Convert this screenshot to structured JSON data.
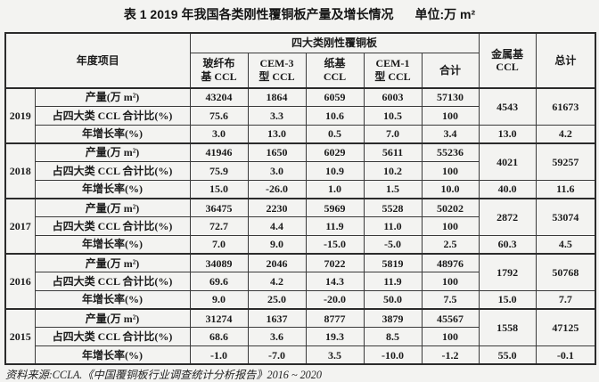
{
  "title": {
    "main": "表 1  2019 年我国各类刚性覆铜板产量及增长情况",
    "unit": "单位:万 m²"
  },
  "table": {
    "header": {
      "year_item": "年度项目",
      "four_types_group": "四大类刚性覆铜板",
      "four_type_columns": [
        "玻纤布\n基 CCL",
        "CEM-3\n型 CCL",
        "纸基\nCCL",
        "CEM-1\n型 CCL",
        "合计"
      ],
      "metal_base": "金属基\nCCL",
      "grand_total": "总计"
    },
    "row_labels": [
      "产量(万 m²)",
      "占四大类 CCL 合计比(%)",
      "年增长率(%)"
    ],
    "years": [
      {
        "year": "2019",
        "production": [
          "43204",
          "1864",
          "6059",
          "6003",
          "57130"
        ],
        "share": [
          "75.6",
          "3.3",
          "10.6",
          "10.5",
          "100"
        ],
        "growth": [
          "3.0",
          "13.0",
          "0.5",
          "7.0",
          "3.4"
        ],
        "metal_value": "4543",
        "metal_growth": "13.0",
        "total_value": "61673",
        "total_growth": "4.2"
      },
      {
        "year": "2018",
        "production": [
          "41946",
          "1650",
          "6029",
          "5611",
          "55236"
        ],
        "share": [
          "75.9",
          "3.0",
          "10.9",
          "10.2",
          "100"
        ],
        "growth": [
          "15.0",
          "-26.0",
          "1.0",
          "1.5",
          "10.0"
        ],
        "metal_value": "4021",
        "metal_growth": "40.0",
        "total_value": "59257",
        "total_growth": "11.6"
      },
      {
        "year": "2017",
        "production": [
          "36475",
          "2230",
          "5969",
          "5528",
          "50202"
        ],
        "share": [
          "72.7",
          "4.4",
          "11.9",
          "11.0",
          "100"
        ],
        "growth": [
          "7.0",
          "9.0",
          "-15.0",
          "-5.0",
          "2.5"
        ],
        "metal_value": "2872",
        "metal_growth": "60.3",
        "total_value": "53074",
        "total_growth": "4.5"
      },
      {
        "year": "2016",
        "production": [
          "34089",
          "2046",
          "7022",
          "5819",
          "48976"
        ],
        "share": [
          "69.6",
          "4.2",
          "14.3",
          "11.9",
          "100"
        ],
        "growth": [
          "9.0",
          "25.0",
          "-20.0",
          "50.0",
          "7.5"
        ],
        "metal_value": "1792",
        "metal_growth": "15.0",
        "total_value": "50768",
        "total_growth": "7.7"
      },
      {
        "year": "2015",
        "production": [
          "31274",
          "1637",
          "8777",
          "3879",
          "45567"
        ],
        "share": [
          "68.6",
          "3.6",
          "19.3",
          "8.5",
          "100"
        ],
        "growth": [
          "-1.0",
          "-7.0",
          "3.5",
          "-10.0",
          "-1.2"
        ],
        "metal_value": "1558",
        "metal_growth": "55.0",
        "total_value": "47125",
        "total_growth": "-0.1"
      }
    ]
  },
  "footer": {
    "source": "资料来源:CCLA.《中国覆铜板行业调查统计分析报告》2016 ~ 2020"
  }
}
